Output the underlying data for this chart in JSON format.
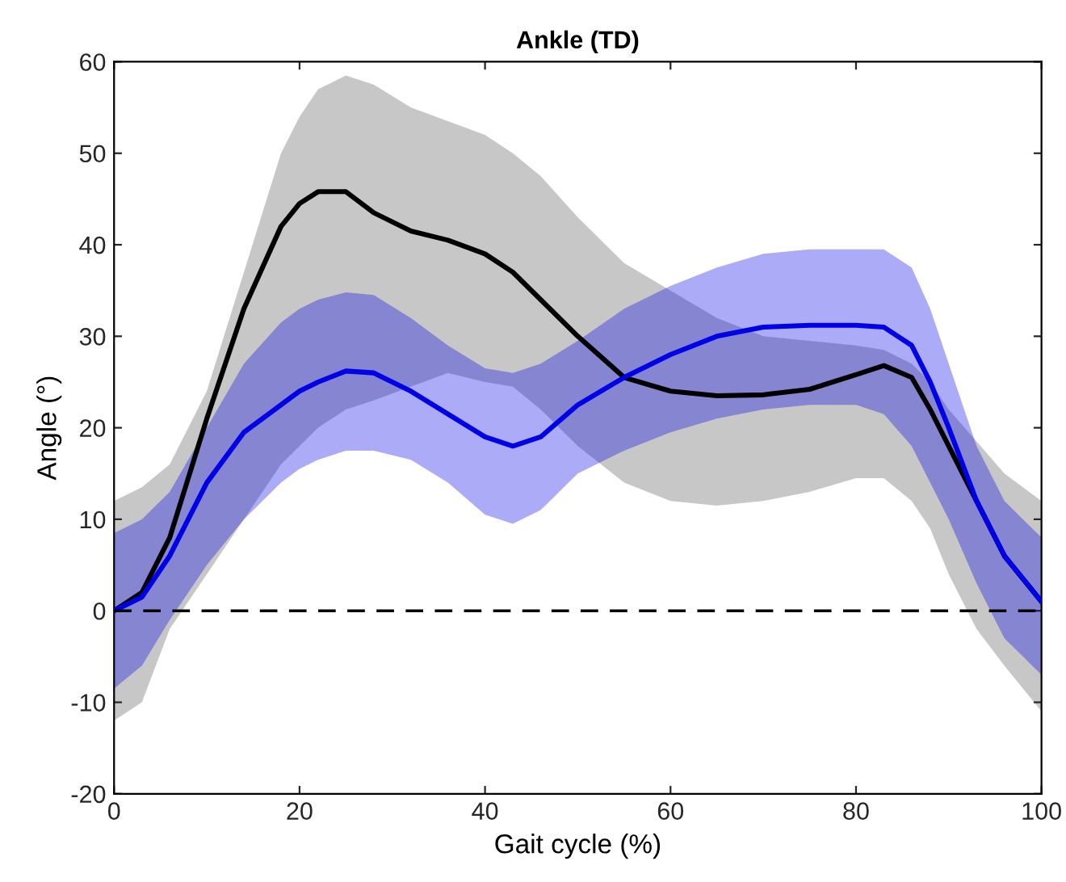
{
  "chart_data": {
    "type": "line",
    "title": "Ankle (TD)",
    "xlabel": "Gait cycle (%)",
    "ylabel": "Angle (°)",
    "x": [
      0,
      3,
      6,
      10,
      14,
      18,
      20,
      22,
      25,
      28,
      32,
      36,
      40,
      43,
      46,
      50,
      55,
      60,
      65,
      70,
      75,
      80,
      83,
      86,
      88,
      90,
      93,
      96,
      100
    ],
    "series": [
      {
        "color": "#000000",
        "values": [
          0,
          2,
          8,
          21,
          33,
          42,
          44.5,
          45.8,
          45.8,
          43.5,
          41.5,
          40.5,
          39,
          37,
          34,
          30,
          25.5,
          24,
          23.5,
          23.6,
          24.2,
          25.8,
          26.8,
          25.5,
          22,
          18,
          12,
          6,
          1
        ],
        "lower": [
          -12,
          -10,
          -2,
          4,
          10,
          16,
          18,
          20,
          22,
          23,
          24.5,
          26,
          25,
          24.5,
          22,
          18,
          14,
          12,
          11.5,
          12,
          13,
          14.5,
          14.5,
          12,
          9,
          4,
          -2,
          -6,
          -11
        ],
        "upper": [
          12,
          13.5,
          16,
          24,
          37,
          50,
          54,
          57,
          58.5,
          57.5,
          55,
          53.5,
          52,
          50,
          47.5,
          43,
          38,
          35,
          32,
          30,
          29.5,
          29,
          28.5,
          27,
          25,
          22,
          18.5,
          15,
          12
        ]
      },
      {
        "color": "#0000e6",
        "values": [
          0,
          1.5,
          6,
          14,
          19.5,
          22.5,
          24,
          25,
          26.2,
          26,
          24,
          21.5,
          19,
          18,
          19,
          22.5,
          25.5,
          28,
          30,
          31,
          31.2,
          31.2,
          31,
          29,
          25,
          20,
          12,
          6,
          1
        ],
        "lower": [
          -8.5,
          -6,
          -1,
          5,
          10,
          14,
          15.5,
          16.5,
          17.5,
          17.5,
          16.5,
          14,
          10.5,
          9.5,
          11,
          15,
          17.5,
          19.5,
          21,
          22,
          22.5,
          22.5,
          21.5,
          18,
          14,
          10,
          3,
          -3,
          -7
        ],
        "upper": [
          8.5,
          10,
          13,
          20,
          27,
          31.5,
          33,
          34,
          34.8,
          34.5,
          32,
          29,
          26.5,
          26,
          27,
          29.5,
          33,
          35.5,
          37.5,
          39,
          39.5,
          39.5,
          39.5,
          37.5,
          33,
          27,
          18,
          12,
          8
        ]
      }
    ],
    "xlim": [
      0,
      100
    ],
    "xticks": [
      0,
      20,
      40,
      60,
      80,
      100
    ],
    "ylim": [
      -20,
      60
    ],
    "yticks": [
      -20,
      -10,
      0,
      10,
      20,
      30,
      40,
      50,
      60
    ],
    "ref_lines": [
      {
        "axis": "y",
        "value": 0,
        "color": "#000000",
        "line_style": "dashed"
      }
    ],
    "grid": false,
    "line_style": "solid",
    "marker": "none"
  }
}
